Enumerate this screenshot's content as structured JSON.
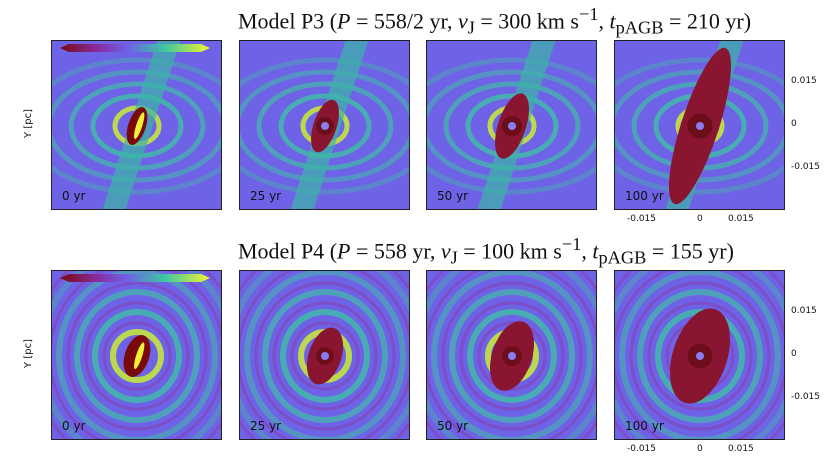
{
  "rows": [
    {
      "title": "Model P3 (P = 558/2 yr, v_J = 300 km s^-1, t_pAGB = 210 yr)",
      "title_parts": {
        "model": "Model P3",
        "p": "558/2",
        "vj": "300",
        "tpagb": "210"
      },
      "panels": [
        {
          "time": "0 yr"
        },
        {
          "time": "25 yr"
        },
        {
          "time": "50 yr"
        },
        {
          "time": "100 yr"
        }
      ]
    },
    {
      "title": "Model P4 (P = 558 yr, v_J = 100 km s^-1, t_pAGB = 155 yr)",
      "title_parts": {
        "model": "Model P4",
        "p": "558",
        "vj": "100",
        "tpagb": "155"
      },
      "panels": [
        {
          "time": "0 yr"
        },
        {
          "time": "25 yr"
        },
        {
          "time": "50 yr"
        },
        {
          "time": "100 yr"
        }
      ]
    }
  ],
  "axes": {
    "ylabel": "Y [pc]",
    "ticks": [
      "-0.015",
      "0",
      "0.015"
    ]
  },
  "colormap": {
    "low": "#7a0a0a",
    "mid": "#6e62e6",
    "high": "#f5f52a"
  }
}
